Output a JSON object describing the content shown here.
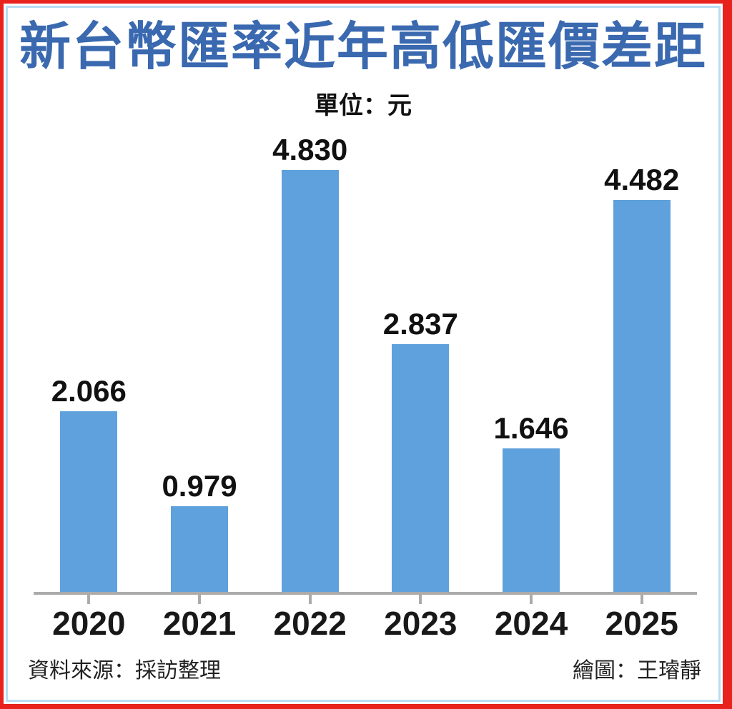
{
  "frame": {
    "outer_border_color": "#e8231d",
    "inner_border_color": "#b8dcf2"
  },
  "header": {
    "title": "新台幣匯率近年高低匯價差距",
    "title_color": "#3a69b0",
    "subtitle": "單位：元"
  },
  "chart_data": {
    "type": "bar",
    "title": "新台幣匯率近年高低匯價差距",
    "unit_label": "單位：元",
    "categories": [
      "2020",
      "2021",
      "2022",
      "2023",
      "2024",
      "2025"
    ],
    "values": [
      2.066,
      0.979,
      4.83,
      2.837,
      1.646,
      4.482
    ],
    "value_labels": [
      "2.066",
      "0.979",
      "4.830",
      "2.837",
      "1.646",
      "4.482"
    ],
    "bar_color": "#5fa1dc",
    "axis_color": "#ababab",
    "xlabel": "",
    "ylabel": "",
    "ylim": [
      0,
      5
    ],
    "grid": false,
    "legend": false
  },
  "footer": {
    "source": "資料來源：採訪整理",
    "credit": "繪圖：王璿靜"
  }
}
